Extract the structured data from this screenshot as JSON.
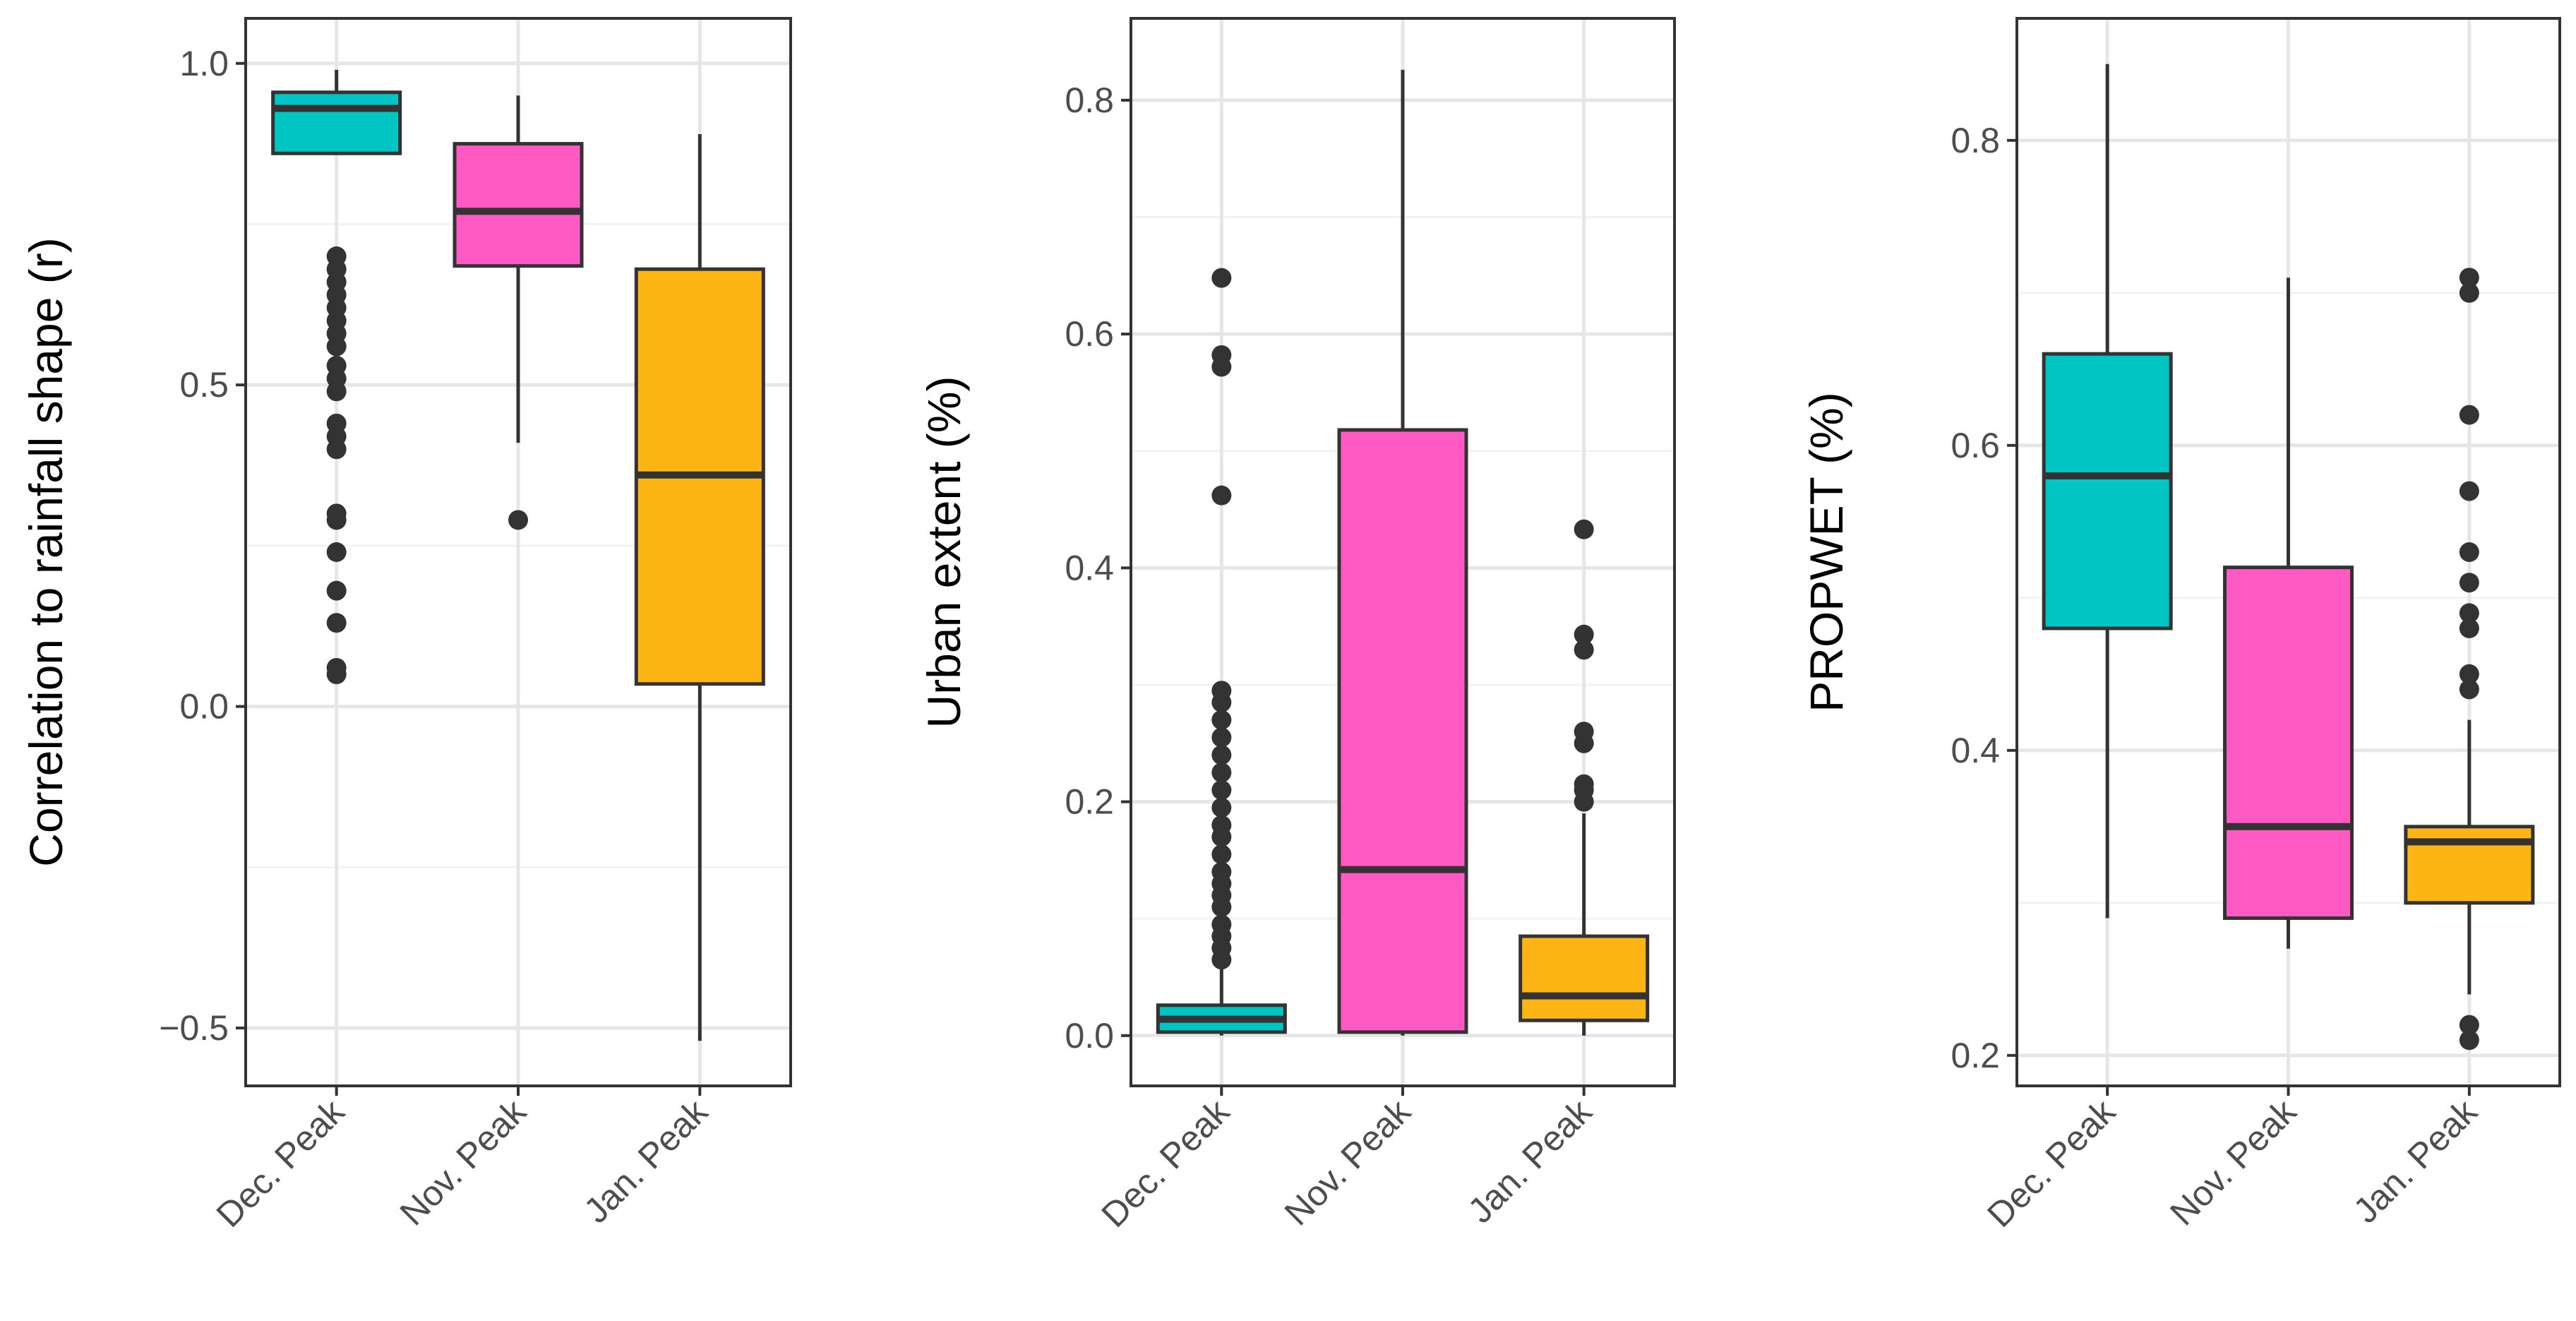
{
  "chart_data": [
    {
      "type": "box",
      "ylabel": "Correlation to rainfall shape (r)",
      "ylim": [
        -0.59,
        1.07
      ],
      "y_ticks": [
        -0.5,
        0.0,
        0.5,
        1.0
      ],
      "y_tick_labels": [
        "−0.5",
        "0.0",
        "0.5",
        "1.0"
      ],
      "grid": true,
      "categories": [
        "Dec. Peak",
        "Nov. Peak",
        "Jan. Peak"
      ],
      "boxes": [
        {
          "name": "Dec. Peak",
          "color": "#00C5C3",
          "whisker_low": 0.86,
          "q1": 0.86,
          "median": 0.93,
          "q3": 0.955,
          "whisker_high": 0.99,
          "outliers": [
            0.05,
            0.06,
            0.13,
            0.18,
            0.24,
            0.29,
            0.3,
            0.4,
            0.42,
            0.44,
            0.49,
            0.51,
            0.53,
            0.56,
            0.58,
            0.6,
            0.62,
            0.64,
            0.66,
            0.68,
            0.7
          ]
        },
        {
          "name": "Nov. Peak",
          "color": "#FF59C3",
          "whisker_low": 0.41,
          "q1": 0.685,
          "median": 0.77,
          "q3": 0.875,
          "whisker_high": 0.95,
          "outliers": [
            0.29
          ]
        },
        {
          "name": "Jan. Peak",
          "color": "#FDB515",
          "whisker_low": -0.52,
          "q1": 0.035,
          "median": 0.36,
          "q3": 0.68,
          "whisker_high": 0.89,
          "outliers": []
        }
      ]
    },
    {
      "type": "box",
      "ylabel": "Urban extent (%)",
      "ylim": [
        -0.043,
        0.87
      ],
      "y_ticks": [
        0.0,
        0.2,
        0.4,
        0.6,
        0.8
      ],
      "y_tick_labels": [
        "0.0",
        "0.2",
        "0.4",
        "0.6",
        "0.8"
      ],
      "grid": true,
      "categories": [
        "Dec. Peak",
        "Nov. Peak",
        "Jan. Peak"
      ],
      "boxes": [
        {
          "name": "Dec. Peak",
          "color": "#00C5C3",
          "whisker_low": 0.0,
          "q1": 0.003,
          "median": 0.014,
          "q3": 0.026,
          "whisker_high": 0.06,
          "outliers": [
            0.065,
            0.075,
            0.085,
            0.095,
            0.11,
            0.12,
            0.13,
            0.14,
            0.155,
            0.17,
            0.18,
            0.195,
            0.21,
            0.225,
            0.24,
            0.255,
            0.27,
            0.285,
            0.295,
            0.462,
            0.572,
            0.582,
            0.648
          ]
        },
        {
          "name": "Nov. Peak",
          "color": "#FF59C3",
          "whisker_low": 0.0,
          "q1": 0.003,
          "median": 0.142,
          "q3": 0.518,
          "whisker_high": 0.826,
          "outliers": []
        },
        {
          "name": "Jan. Peak",
          "color": "#FDB515",
          "whisker_low": 0.0,
          "q1": 0.013,
          "median": 0.034,
          "q3": 0.085,
          "whisker_high": 0.19,
          "outliers": [
            0.2,
            0.21,
            0.215,
            0.25,
            0.26,
            0.33,
            0.343,
            0.433
          ]
        }
      ]
    },
    {
      "type": "box",
      "ylabel": "PROPWET (%)",
      "ylim": [
        0.18,
        0.88
      ],
      "y_ticks": [
        0.2,
        0.4,
        0.6,
        0.8
      ],
      "y_tick_labels": [
        "0.2",
        "0.4",
        "0.6",
        "0.8"
      ],
      "grid": true,
      "categories": [
        "Dec. Peak",
        "Nov. Peak",
        "Jan. Peak"
      ],
      "boxes": [
        {
          "name": "Dec. Peak",
          "color": "#00C5C3",
          "whisker_low": 0.29,
          "q1": 0.48,
          "median": 0.58,
          "q3": 0.66,
          "whisker_high": 0.85,
          "outliers": []
        },
        {
          "name": "Nov. Peak",
          "color": "#FF59C3",
          "whisker_low": 0.27,
          "q1": 0.29,
          "median": 0.35,
          "q3": 0.52,
          "whisker_high": 0.71,
          "outliers": []
        },
        {
          "name": "Jan. Peak",
          "color": "#FDB515",
          "whisker_low": 0.24,
          "q1": 0.3,
          "median": 0.34,
          "q3": 0.35,
          "whisker_high": 0.42,
          "outliers": [
            0.21,
            0.22,
            0.44,
            0.45,
            0.48,
            0.49,
            0.51,
            0.53,
            0.57,
            0.62,
            0.7,
            0.71
          ]
        }
      ]
    }
  ]
}
